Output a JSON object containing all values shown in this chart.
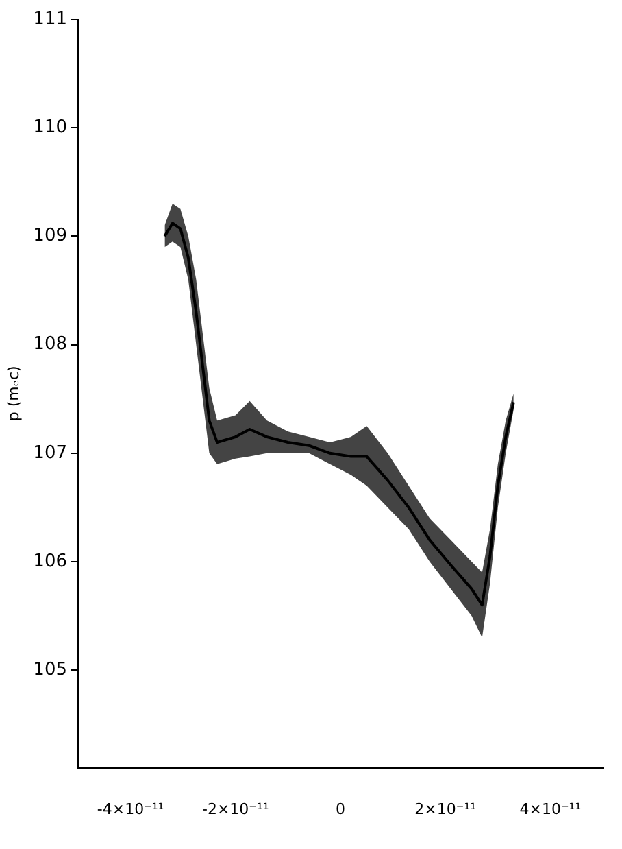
{
  "chart_data": {
    "type": "line",
    "ylabel": "p (mₑc)",
    "xlim": [
      -5e-11,
      5e-11
    ],
    "ylim": [
      104.1,
      111
    ],
    "xticks": [
      {
        "value": -4e-11,
        "label": "-4×10⁻¹¹"
      },
      {
        "value": -2e-11,
        "label": "-2×10⁻¹¹"
      },
      0,
      {
        "value": 2e-11,
        "label": "2×10⁻¹¹"
      },
      {
        "value": 4e-11,
        "label": "4×10⁻¹¹"
      }
    ],
    "yticks": [
      105,
      106,
      107,
      108,
      109,
      110,
      111
    ],
    "grid": false,
    "legend": false,
    "marker": "none",
    "line_style": "solid",
    "series": [
      {
        "color": "#000000",
        "x": [
          -3.35e-11,
          -3.2e-11,
          -3.05e-11,
          -2.9e-11,
          -2.75e-11,
          -2.6e-11,
          -2.5e-11,
          -2.35e-11,
          -2e-11,
          -1.73e-11,
          -1.4e-11,
          -1e-11,
          -6e-12,
          -2e-12,
          2e-12,
          5e-12,
          9e-12,
          1.3e-11,
          1.7e-11,
          2.1e-11,
          2.5e-11,
          2.7e-11,
          2.85e-11,
          3e-11,
          3.15e-11,
          3.3e-11
        ],
        "values": [
          109.0,
          109.12,
          109.07,
          108.8,
          108.3,
          107.7,
          107.3,
          107.1,
          107.15,
          107.22,
          107.15,
          107.1,
          107.07,
          107.0,
          106.97,
          106.97,
          106.75,
          106.5,
          106.2,
          105.97,
          105.75,
          105.6,
          106.05,
          106.7,
          107.15,
          107.47
        ],
        "lower": [
          108.9,
          108.95,
          108.9,
          108.6,
          108.0,
          107.4,
          107.0,
          106.9,
          106.95,
          106.97,
          107.0,
          107.0,
          107.0,
          106.9,
          106.8,
          106.7,
          106.5,
          106.3,
          106.0,
          105.75,
          105.5,
          105.3,
          105.8,
          106.5,
          107.0,
          107.4
        ],
        "upper": [
          109.1,
          109.3,
          109.25,
          109.0,
          108.6,
          108.0,
          107.6,
          107.3,
          107.35,
          107.48,
          107.3,
          107.2,
          107.15,
          107.1,
          107.15,
          107.25,
          107.0,
          106.7,
          106.4,
          106.2,
          106.0,
          105.9,
          106.3,
          106.9,
          107.3,
          107.55
        ]
      }
    ]
  }
}
